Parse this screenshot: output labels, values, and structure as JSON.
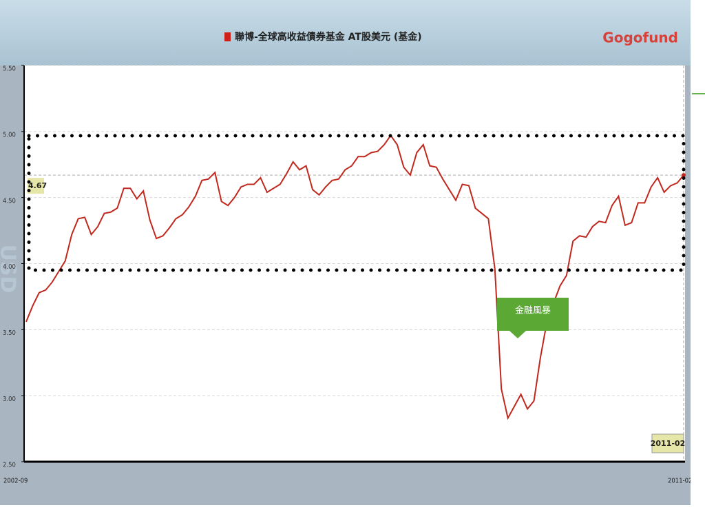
{
  "chart_data": {
    "type": "line",
    "brand": "Gogofund",
    "y_label": "USD",
    "annotation": "金融風暴",
    "categories": [
      "2002-09",
      null,
      null,
      null,
      null,
      null,
      null,
      null,
      null,
      null,
      null,
      null,
      null,
      null,
      null,
      null,
      null,
      null,
      null,
      null,
      null,
      null,
      null,
      null,
      null,
      null,
      null,
      null,
      null,
      null,
      null,
      null,
      null,
      null,
      null,
      null,
      null,
      null,
      null,
      null,
      null,
      null,
      null,
      null,
      null,
      null,
      null,
      null,
      null,
      null,
      null,
      null,
      null,
      null,
      null,
      null,
      null,
      null,
      null,
      null,
      null,
      null,
      null,
      null,
      null,
      null,
      null,
      null,
      null,
      null,
      null,
      null,
      null,
      null,
      null,
      null,
      null,
      null,
      null,
      null,
      null,
      null,
      null,
      null,
      null,
      null,
      null,
      null,
      null,
      null,
      null,
      null,
      null,
      null,
      null,
      null,
      null,
      null,
      null,
      null,
      null,
      "2011-02"
    ],
    "series": [
      {
        "name": "聯博-全球高收益債券基金 AT股美元 (基金)",
        "color": "#c0281e",
        "values": [
          3.56,
          3.68,
          3.78,
          3.8,
          3.86,
          3.94,
          4.02,
          4.22,
          4.34,
          4.35,
          4.22,
          4.28,
          4.38,
          4.39,
          4.42,
          4.57,
          4.57,
          4.49,
          4.55,
          4.33,
          4.19,
          4.21,
          4.27,
          4.34,
          4.37,
          4.43,
          4.51,
          4.63,
          4.64,
          4.69,
          4.47,
          4.44,
          4.5,
          4.58,
          4.6,
          4.6,
          4.65,
          4.54,
          4.57,
          4.6,
          4.68,
          4.77,
          4.71,
          4.74,
          4.56,
          4.52,
          4.58,
          4.63,
          4.64,
          4.71,
          4.74,
          4.81,
          4.81,
          4.84,
          4.85,
          4.9,
          4.97,
          4.9,
          4.73,
          4.67,
          4.84,
          4.9,
          4.74,
          4.73,
          4.64,
          4.56,
          4.48,
          4.6,
          4.59,
          4.42,
          4.38,
          4.34,
          3.96,
          3.05,
          2.83,
          2.92,
          3.01,
          2.9,
          2.96,
          3.29,
          3.56,
          3.7,
          3.83,
          3.91,
          4.17,
          4.21,
          4.2,
          4.28,
          4.32,
          4.31,
          4.44,
          4.51,
          4.29,
          4.31,
          4.46,
          4.46,
          4.58,
          4.65,
          4.54,
          4.59,
          4.61,
          4.67
        ]
      }
    ],
    "ylim": [
      2.5,
      5.5
    ],
    "yticks": [
      {
        "value": 2.5,
        "label": "2.50"
      },
      {
        "value": 3,
        "label": "3.00"
      },
      {
        "value": 3.5,
        "label": "3.50"
      },
      {
        "value": 4,
        "label": "4.00"
      },
      {
        "value": 4.5,
        "label": "4.50"
      },
      {
        "value": 5,
        "label": "5.00"
      },
      {
        "value": 5.5,
        "label": "5.50"
      }
    ],
    "grid": true
  }
}
